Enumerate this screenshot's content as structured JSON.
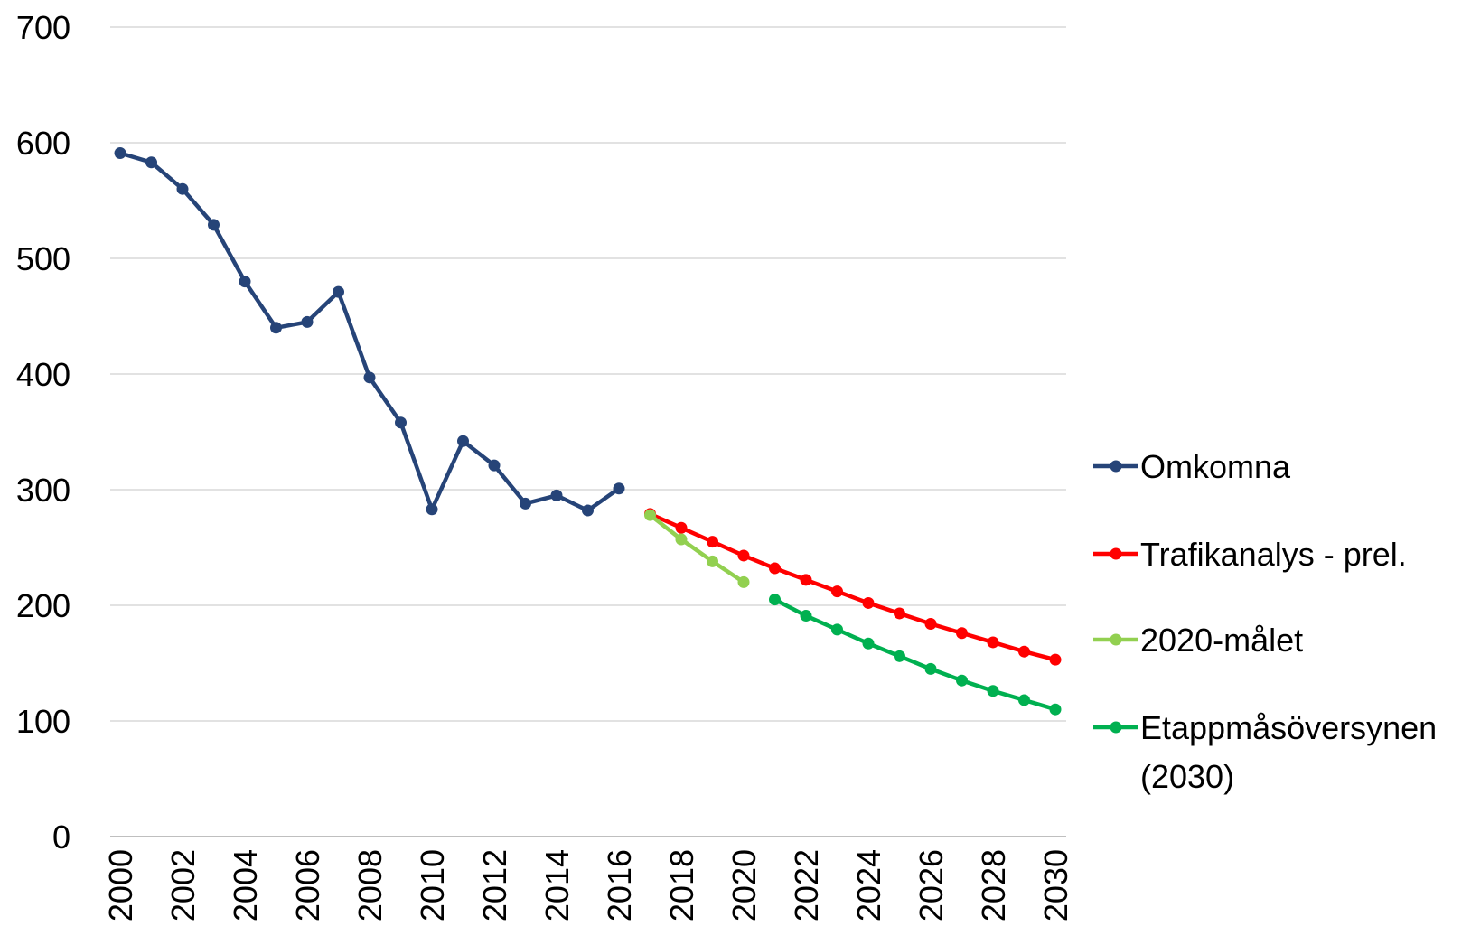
{
  "chart_data": {
    "type": "line",
    "title": "",
    "xlabel": "",
    "ylabel": "",
    "ylim": [
      0,
      700
    ],
    "yticks": [
      "0",
      "100",
      "200",
      "300",
      "400",
      "500",
      "600",
      "700"
    ],
    "xticks": [
      "2000",
      "2002",
      "2004",
      "2006",
      "2008",
      "2010",
      "2012",
      "2014",
      "2016",
      "2018",
      "2020",
      "2022",
      "2024",
      "2026",
      "2028",
      "2030"
    ],
    "xlim": [
      2000,
      2030
    ],
    "grid": "horizontal",
    "legend_position": "right",
    "series": [
      {
        "name": "Omkomna",
        "color": "#264478",
        "x": [
          2000,
          2001,
          2002,
          2003,
          2004,
          2005,
          2006,
          2007,
          2008,
          2009,
          2010,
          2011,
          2012,
          2013,
          2014,
          2015,
          2016
        ],
        "values": [
          591,
          583,
          560,
          529,
          480,
          440,
          445,
          471,
          397,
          358,
          283,
          342,
          321,
          288,
          295,
          282,
          301
        ]
      },
      {
        "name": "Trafikanalys - prel.",
        "color": "#ff0000",
        "x": [
          2017,
          2018,
          2019,
          2020,
          2021,
          2022,
          2023,
          2024,
          2025,
          2026,
          2027,
          2028,
          2029,
          2030
        ],
        "values": [
          279,
          267,
          255,
          243,
          232,
          222,
          212,
          202,
          193,
          184,
          176,
          168,
          160,
          153
        ]
      },
      {
        "name": "2020-målet",
        "color": "#92d050",
        "x": [
          2017,
          2018,
          2019,
          2020
        ],
        "values": [
          278,
          257,
          238,
          220
        ]
      },
      {
        "name": "Etappmåsöversynen\n(2030)",
        "legend_lines": [
          "Etappmåsöversynen",
          "(2030)"
        ],
        "color": "#00b050",
        "x": [
          2021,
          2022,
          2023,
          2024,
          2025,
          2026,
          2027,
          2028,
          2029,
          2030
        ],
        "values": [
          205,
          191,
          179,
          167,
          156,
          145,
          135,
          126,
          118,
          110
        ]
      }
    ]
  }
}
